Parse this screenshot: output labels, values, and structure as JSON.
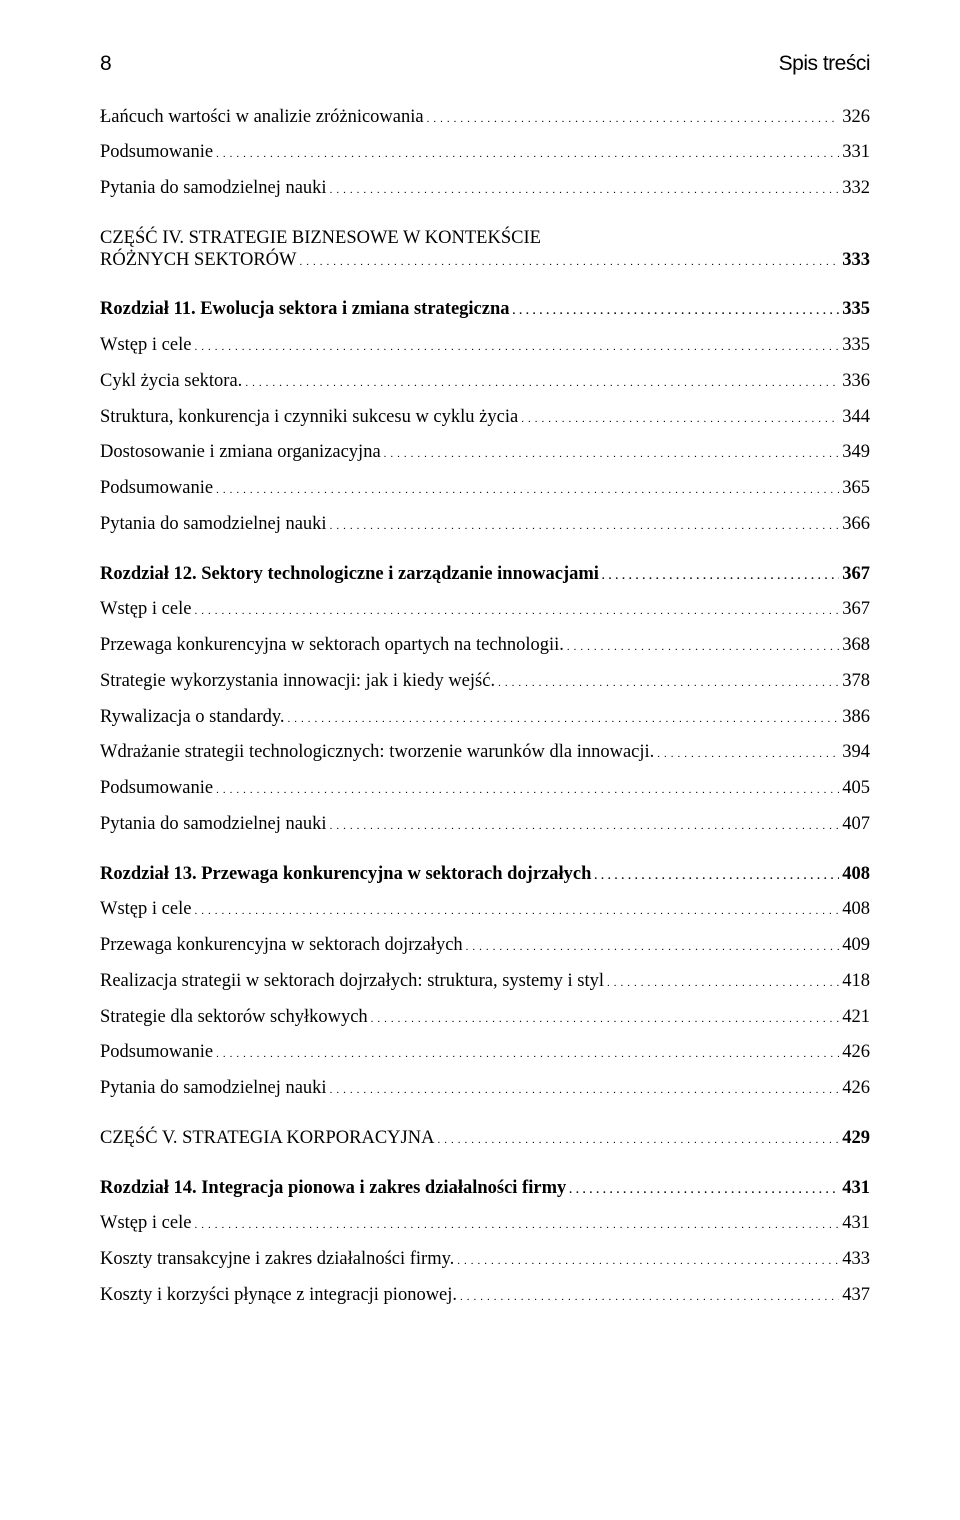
{
  "page_number": "8",
  "header_label": "Spis treści",
  "intro_lines": [
    {
      "label": "Łańcuch wartości w analizie zróżnicowania",
      "page": "326"
    },
    {
      "label": "Podsumowanie",
      "page": "331"
    },
    {
      "label": "Pytania do samodzielnej nauki",
      "page": "332"
    }
  ],
  "part4": {
    "part_label_1": "CZĘŚĆ IV. STRATEGIE BIZNESOWE W KONTEKŚCIE",
    "part_label_2": "RÓŻNYCH SEKTORÓW",
    "part_page": "333"
  },
  "chapter11": {
    "title": "Rozdział 11. Ewolucja sektora i zmiana strategiczna",
    "title_page": "335",
    "sections": [
      {
        "label": "Wstęp i cele",
        "page": "335"
      },
      {
        "label": "Cykl życia sektora.",
        "page": "336"
      },
      {
        "label": "Struktura, konkurencja i czynniki sukcesu w cyklu życia",
        "page": "344"
      },
      {
        "label": "Dostosowanie i zmiana organizacyjna",
        "page": "349"
      },
      {
        "label": "Podsumowanie",
        "page": "365"
      },
      {
        "label": "Pytania do samodzielnej nauki",
        "page": "366"
      }
    ]
  },
  "chapter12": {
    "title": "Rozdział 12. Sektory technologiczne i zarządzanie innowacjami",
    "title_page": "367",
    "sections": [
      {
        "label": "Wstęp i cele",
        "page": "367"
      },
      {
        "label": "Przewaga konkurencyjna w sektorach opartych na technologii.",
        "page": "368"
      },
      {
        "label": "Strategie wykorzystania innowacji: jak i kiedy wejść.",
        "page": "378"
      },
      {
        "label": "Rywalizacja o standardy.",
        "page": "386"
      },
      {
        "label": "Wdrażanie strategii technologicznych: tworzenie warunków dla innowacji.",
        "page": "394"
      },
      {
        "label": "Podsumowanie",
        "page": "405"
      },
      {
        "label": "Pytania do samodzielnej nauki",
        "page": "407"
      }
    ]
  },
  "chapter13": {
    "title": "Rozdział 13. Przewaga konkurencyjna w sektorach dojrzałych",
    "title_page": "408",
    "sections": [
      {
        "label": "Wstęp i cele",
        "page": "408"
      },
      {
        "label": "Przewaga konkurencyjna w sektorach dojrzałych",
        "page": "409"
      },
      {
        "label": "Realizacja strategii w sektorach dojrzałych: struktura, systemy i styl",
        "page": "418"
      },
      {
        "label": "Strategie dla sektorów schyłkowych",
        "page": "421"
      },
      {
        "label": "Podsumowanie",
        "page": "426"
      },
      {
        "label": "Pytania do samodzielnej nauki",
        "page": "426"
      }
    ]
  },
  "part5": {
    "part_label": "CZĘŚĆ V. STRATEGIA KORPORACYJNA",
    "part_page": "429"
  },
  "chapter14": {
    "title": "Rozdział 14. Integracja pionowa i zakres działalności firmy",
    "title_page": "431",
    "sections": [
      {
        "label": "Wstęp i cele",
        "page": "431"
      },
      {
        "label": "Koszty transakcyjne i zakres działalności firmy.",
        "page": "433"
      },
      {
        "label": "Koszty i korzyści płynące z integracji pionowej.",
        "page": "437"
      }
    ]
  }
}
